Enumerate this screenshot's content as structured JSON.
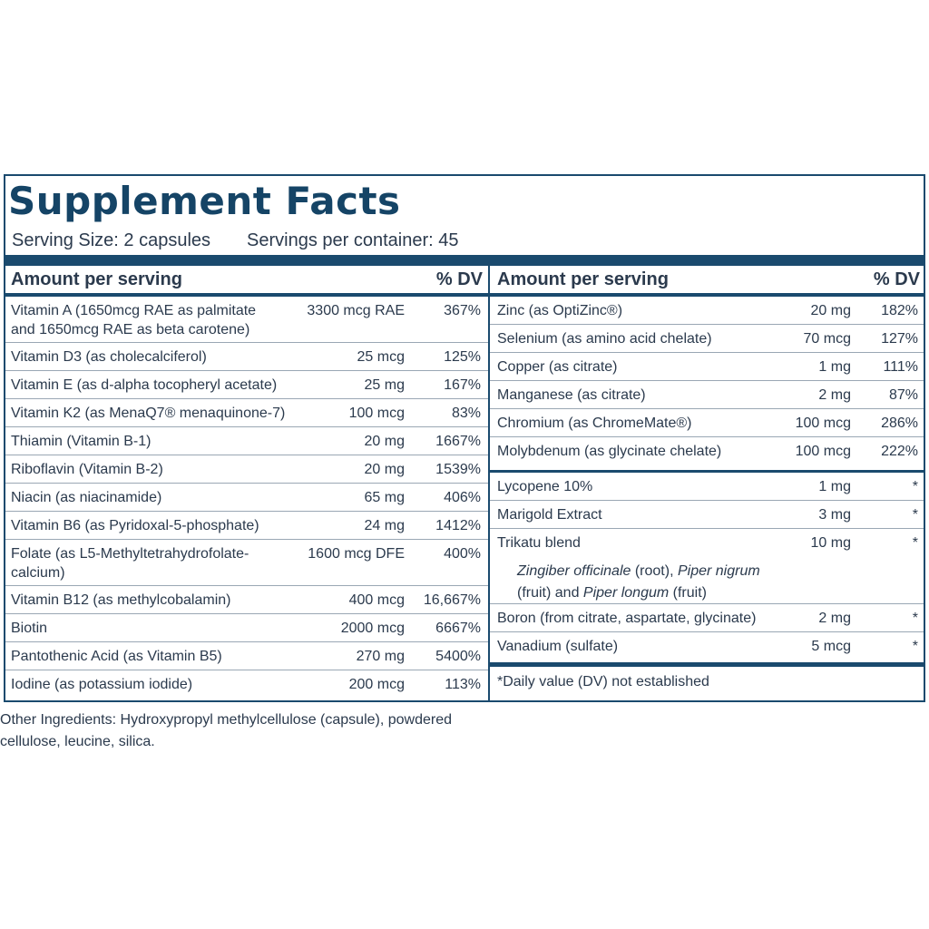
{
  "title": "Supplement Facts",
  "serving_size": "Serving Size:  2 capsules",
  "servings_per_container": "Servings per container:  45",
  "header": {
    "amount": "Amount per serving",
    "dv": "% DV"
  },
  "left_rows": [
    {
      "name": "Vitamin A (1650mcg RAE as palmitate and 1650mcg RAE as beta carotene)",
      "amount": "3300 mcg RAE",
      "dv": "367%"
    },
    {
      "name": "Vitamin D3 (as cholecalciferol)",
      "amount": "25 mcg",
      "dv": "125%"
    },
    {
      "name": "Vitamin E (as d-alpha tocopheryl acetate)",
      "amount": "25 mg",
      "dv": "167%"
    },
    {
      "name": "Vitamin K2 (as MenaQ7® menaquinone-7)",
      "amount": "100 mcg",
      "dv": "83%"
    },
    {
      "name": "Thiamin (Vitamin B-1)",
      "amount": "20 mg",
      "dv": "1667%"
    },
    {
      "name": "Riboflavin (Vitamin B-2)",
      "amount": "20 mg",
      "dv": "1539%"
    },
    {
      "name": "Niacin (as niacinamide)",
      "amount": "65 mg",
      "dv": "406%"
    },
    {
      "name": "Vitamin B6 (as Pyridoxal-5-phosphate)",
      "amount": "24 mg",
      "dv": "1412%"
    },
    {
      "name": "Folate (as L5-Methyltetrahydrofolate-calcium)",
      "amount": "1600 mcg DFE",
      "dv": "400%"
    },
    {
      "name": "Vitamin B12 (as methylcobalamin)",
      "amount": "400 mcg",
      "dv": "16,667%"
    },
    {
      "name": "Biotin",
      "amount": "2000 mcg",
      "dv": "6667%"
    },
    {
      "name": "Pantothenic Acid (as Vitamin B5)",
      "amount": "270 mg",
      "dv": "5400%"
    },
    {
      "name": "Iodine (as potassium iodide)",
      "amount": "200 mcg",
      "dv": "113%"
    }
  ],
  "right_rows": [
    {
      "name": "Zinc (as OptiZinc®)",
      "amount": "20 mg",
      "dv": "182%"
    },
    {
      "name": "Selenium (as amino acid chelate)",
      "amount": "70 mcg",
      "dv": "127%"
    },
    {
      "name": "Copper (as citrate)",
      "amount": "1 mg",
      "dv": "111%"
    },
    {
      "name": "Manganese (as citrate)",
      "amount": "2 mg",
      "dv": "87%"
    },
    {
      "name": "Chromium (as ChromeMate®)",
      "amount": "100 mcg",
      "dv": "286%"
    },
    {
      "name": "Molybdenum (as glycinate chelate)",
      "amount": "100 mcg",
      "dv": "222%"
    }
  ],
  "right_rows_2": [
    {
      "name": "Lycopene 10%",
      "amount": "1 mg",
      "dv": "*"
    },
    {
      "name": "Marigold Extract",
      "amount": "3 mg",
      "dv": "*"
    },
    {
      "name": "Trikatu blend",
      "amount": "10 mg",
      "dv": "*"
    }
  ],
  "trikatu_sub": {
    "p1": "Zingiber officinale",
    "t1": " (root), ",
    "p2": "Piper nigrum",
    "t2": " (fruit) and ",
    "p3": "Piper longum",
    "t3": " (fruit)"
  },
  "right_rows_3": [
    {
      "name": "Boron (from citrate, aspartate, glycinate)",
      "amount": "2 mg",
      "dv": "*"
    },
    {
      "name": "Vanadium (sulfate)",
      "amount": "5 mcg",
      "dv": "*"
    }
  ],
  "footnote": "*Daily value (DV) not established",
  "other_ingredients": "Other Ingredients: Hydroxypropyl methylcellulose (capsule), powdered cellulose, leucine, silica."
}
